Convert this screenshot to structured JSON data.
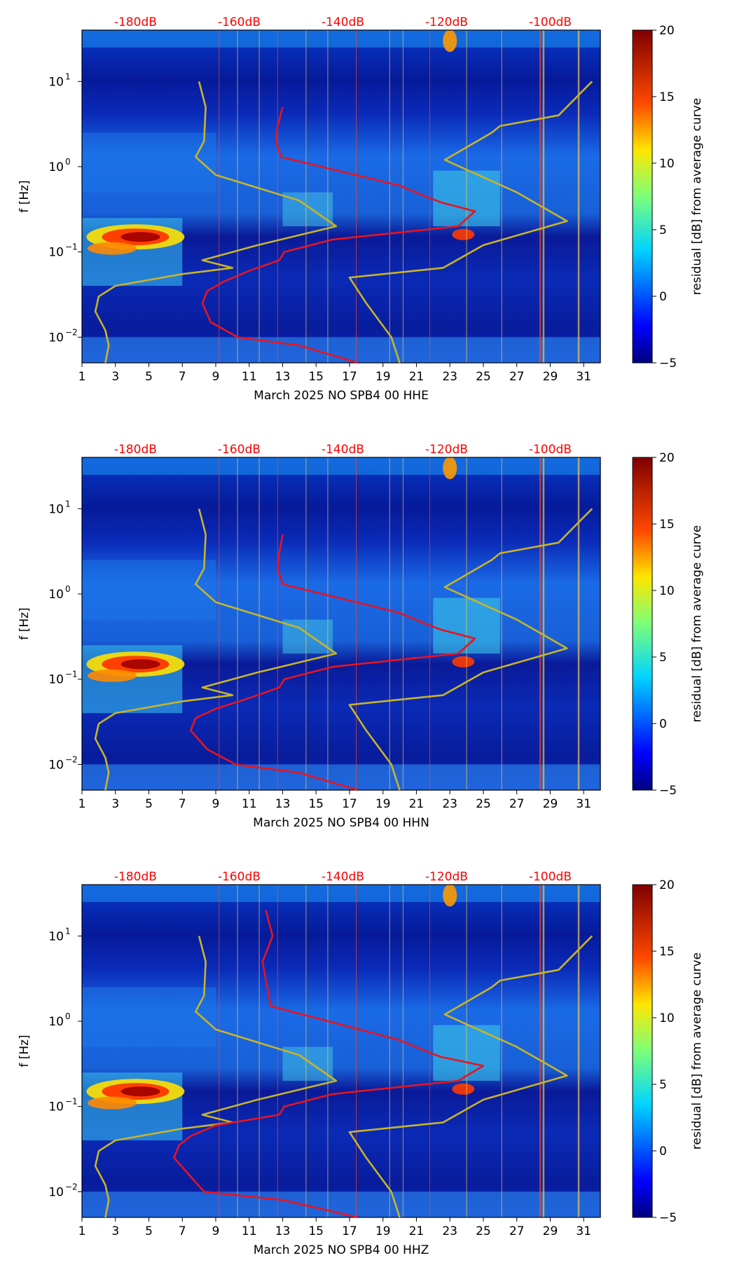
{
  "chart_data": [
    {
      "type": "heatmap",
      "title": "",
      "xlabel": "March 2025 NO SPB4 00 HHE",
      "ylabel": "f [Hz]",
      "xlim": [
        1,
        32
      ],
      "ylim": [
        0.005,
        40
      ],
      "yscale": "log",
      "xticks": [
        1,
        3,
        5,
        7,
        9,
        11,
        13,
        15,
        17,
        19,
        21,
        23,
        25,
        27,
        29,
        31
      ],
      "yticks": [
        {
          "value": 0.01,
          "base": "10",
          "exp": "−2"
        },
        {
          "value": 0.1,
          "base": "10",
          "exp": "−1"
        },
        {
          "value": 1,
          "base": "10",
          "exp": "0"
        },
        {
          "value": 10,
          "base": "10",
          "exp": "1"
        }
      ],
      "top_axis_labels": [
        "-180dB",
        "-160dB",
        "-140dB",
        "-120dB",
        "-100dB"
      ],
      "top_axis_positions": [
        4.2,
        10.4,
        16.6,
        22.8,
        29.0
      ],
      "colorbar": {
        "label": "residual [dB] from average curve",
        "range": [
          -5,
          20
        ],
        "ticks": [
          20,
          15,
          10,
          5,
          0,
          -5
        ],
        "tick_labels": [
          "20",
          "15",
          "10",
          "5",
          "0",
          "−5"
        ]
      },
      "red_curve": [
        [
          13.0,
          5
        ],
        [
          12.7,
          3
        ],
        [
          12.6,
          2
        ],
        [
          12.9,
          1.3
        ],
        [
          20,
          0.6
        ],
        [
          21.5,
          0.45
        ],
        [
          22.5,
          0.38
        ],
        [
          24.5,
          0.3
        ],
        [
          23.5,
          0.2
        ],
        [
          16,
          0.14
        ],
        [
          13.1,
          0.1
        ],
        [
          12.8,
          0.08
        ],
        [
          11,
          0.06
        ],
        [
          9.5,
          0.045
        ],
        [
          8.5,
          0.035
        ],
        [
          8.2,
          0.025
        ],
        [
          8.7,
          0.015
        ],
        [
          10.3,
          0.01
        ],
        [
          14,
          0.008
        ],
        [
          17.5,
          0.005
        ]
      ],
      "yellow_curve": [
        [
          8.0,
          10
        ],
        [
          8.4,
          5
        ],
        [
          8.3,
          2
        ],
        [
          7.8,
          1.3
        ],
        [
          9,
          0.8
        ],
        [
          14,
          0.4
        ],
        [
          16.2,
          0.2
        ],
        [
          11.5,
          0.12
        ],
        [
          8.2,
          0.08
        ],
        [
          10,
          0.065
        ],
        [
          7,
          0.055
        ],
        [
          3,
          0.04
        ],
        [
          2,
          0.03
        ],
        [
          1.8,
          0.02
        ],
        [
          2.4,
          0.012
        ],
        [
          2.6,
          0.008
        ],
        [
          2.4,
          0.005
        ]
      ],
      "yellow_curve_right": [
        [
          31.5,
          10
        ],
        [
          29.5,
          4
        ],
        [
          26,
          3
        ],
        [
          25.5,
          2.5
        ],
        [
          22.7,
          1.2
        ],
        [
          27,
          0.5
        ],
        [
          30,
          0.23
        ],
        [
          25,
          0.12
        ],
        [
          22.6,
          0.065
        ],
        [
          17,
          0.05
        ],
        [
          18,
          0.025
        ],
        [
          19.5,
          0.01
        ],
        [
          20,
          0.005
        ]
      ]
    },
    {
      "type": "heatmap",
      "title": "",
      "xlabel": "March 2025 NO SPB4 00 HHN",
      "ylabel": "f [Hz]",
      "xlim": [
        1,
        32
      ],
      "ylim": [
        0.005,
        40
      ],
      "yscale": "log",
      "xticks": [
        1,
        3,
        5,
        7,
        9,
        11,
        13,
        15,
        17,
        19,
        21,
        23,
        25,
        27,
        29,
        31
      ],
      "yticks": [
        {
          "value": 0.01,
          "base": "10",
          "exp": "−2"
        },
        {
          "value": 0.1,
          "base": "10",
          "exp": "−1"
        },
        {
          "value": 1,
          "base": "10",
          "exp": "0"
        },
        {
          "value": 10,
          "base": "10",
          "exp": "1"
        }
      ],
      "top_axis_labels": [
        "-180dB",
        "-160dB",
        "-140dB",
        "-120dB",
        "-100dB"
      ],
      "top_axis_positions": [
        4.2,
        10.4,
        16.6,
        22.8,
        29.0
      ],
      "colorbar": {
        "label": "residual [dB] from average curve",
        "range": [
          -5,
          20
        ],
        "ticks": [
          20,
          15,
          10,
          5,
          0,
          -5
        ],
        "tick_labels": [
          "20",
          "15",
          "10",
          "5",
          "0",
          "−5"
        ]
      },
      "red_curve": [
        [
          13.0,
          5
        ],
        [
          12.8,
          3
        ],
        [
          12.7,
          2
        ],
        [
          13.0,
          1.3
        ],
        [
          20,
          0.6
        ],
        [
          21.5,
          0.45
        ],
        [
          22.5,
          0.38
        ],
        [
          24.5,
          0.3
        ],
        [
          23.5,
          0.2
        ],
        [
          16,
          0.14
        ],
        [
          13.1,
          0.1
        ],
        [
          12.8,
          0.08
        ],
        [
          11,
          0.06
        ],
        [
          9.0,
          0.045
        ],
        [
          7.8,
          0.035
        ],
        [
          7.5,
          0.025
        ],
        [
          8.5,
          0.015
        ],
        [
          10.2,
          0.01
        ],
        [
          14,
          0.008
        ],
        [
          17.5,
          0.005
        ]
      ],
      "yellow_curve": [
        [
          8.0,
          10
        ],
        [
          8.4,
          5
        ],
        [
          8.3,
          2
        ],
        [
          7.8,
          1.3
        ],
        [
          9,
          0.8
        ],
        [
          14,
          0.4
        ],
        [
          16.2,
          0.2
        ],
        [
          11.5,
          0.12
        ],
        [
          8.2,
          0.08
        ],
        [
          10,
          0.065
        ],
        [
          7,
          0.055
        ],
        [
          3,
          0.04
        ],
        [
          2,
          0.03
        ],
        [
          1.8,
          0.02
        ],
        [
          2.4,
          0.012
        ],
        [
          2.6,
          0.008
        ],
        [
          2.4,
          0.005
        ]
      ],
      "yellow_curve_right": [
        [
          31.5,
          10
        ],
        [
          29.5,
          4
        ],
        [
          26,
          3
        ],
        [
          25.5,
          2.5
        ],
        [
          22.7,
          1.2
        ],
        [
          27,
          0.5
        ],
        [
          30,
          0.23
        ],
        [
          25,
          0.12
        ],
        [
          22.6,
          0.065
        ],
        [
          17,
          0.05
        ],
        [
          18,
          0.025
        ],
        [
          19.5,
          0.01
        ],
        [
          20,
          0.005
        ]
      ]
    },
    {
      "type": "heatmap",
      "title": "",
      "xlabel": "March 2025 NO SPB4 00 HHZ",
      "ylabel": "f [Hz]",
      "xlim": [
        1,
        32
      ],
      "ylim": [
        0.005,
        40
      ],
      "yscale": "log",
      "xticks": [
        1,
        3,
        5,
        7,
        9,
        11,
        13,
        15,
        17,
        19,
        21,
        23,
        25,
        27,
        29,
        31
      ],
      "yticks": [
        {
          "value": 0.01,
          "base": "10",
          "exp": "−2"
        },
        {
          "value": 0.1,
          "base": "10",
          "exp": "−1"
        },
        {
          "value": 1,
          "base": "10",
          "exp": "0"
        },
        {
          "value": 10,
          "base": "10",
          "exp": "1"
        }
      ],
      "top_axis_labels": [
        "-180dB",
        "-160dB",
        "-140dB",
        "-120dB",
        "-100dB"
      ],
      "top_axis_positions": [
        4.2,
        10.4,
        16.6,
        22.8,
        29.0
      ],
      "colorbar": {
        "label": "residual [dB] from average curve",
        "range": [
          -5,
          20
        ],
        "ticks": [
          20,
          15,
          10,
          5,
          0,
          -5
        ],
        "tick_labels": [
          "20",
          "15",
          "10",
          "5",
          "0",
          "−5"
        ]
      },
      "red_curve": [
        [
          12.0,
          20
        ],
        [
          12.4,
          10
        ],
        [
          11.8,
          5
        ],
        [
          12.0,
          3
        ],
        [
          12.3,
          1.5
        ],
        [
          20,
          0.6
        ],
        [
          21.5,
          0.45
        ],
        [
          22.5,
          0.38
        ],
        [
          25.0,
          0.3
        ],
        [
          23.5,
          0.2
        ],
        [
          16,
          0.14
        ],
        [
          13.1,
          0.1
        ],
        [
          12.8,
          0.08
        ],
        [
          9,
          0.06
        ],
        [
          7.5,
          0.045
        ],
        [
          6.8,
          0.035
        ],
        [
          6.5,
          0.025
        ],
        [
          7.5,
          0.015
        ],
        [
          8.3,
          0.01
        ],
        [
          13,
          0.008
        ],
        [
          17.5,
          0.005
        ]
      ],
      "yellow_curve": [
        [
          8.0,
          10
        ],
        [
          8.4,
          5
        ],
        [
          8.3,
          2
        ],
        [
          7.8,
          1.3
        ],
        [
          9,
          0.8
        ],
        [
          14,
          0.4
        ],
        [
          16.2,
          0.2
        ],
        [
          11.5,
          0.12
        ],
        [
          8.2,
          0.08
        ],
        [
          10,
          0.065
        ],
        [
          7,
          0.055
        ],
        [
          3,
          0.04
        ],
        [
          2,
          0.03
        ],
        [
          1.8,
          0.02
        ],
        [
          2.4,
          0.012
        ],
        [
          2.6,
          0.008
        ],
        [
          2.4,
          0.005
        ]
      ],
      "yellow_curve_right": [
        [
          31.5,
          10
        ],
        [
          29.5,
          4
        ],
        [
          26,
          3
        ],
        [
          25.5,
          2.5
        ],
        [
          22.7,
          1.2
        ],
        [
          27,
          0.5
        ],
        [
          30,
          0.23
        ],
        [
          25,
          0.12
        ],
        [
          22.6,
          0.065
        ],
        [
          17,
          0.05
        ],
        [
          18,
          0.025
        ],
        [
          19.5,
          0.01
        ],
        [
          20,
          0.005
        ]
      ]
    }
  ],
  "colors": {
    "background_dark": "#0a1aa8",
    "top_label": "#ff0000",
    "red_curve": "#e8141e",
    "yellow_curve": "#c8b428"
  }
}
